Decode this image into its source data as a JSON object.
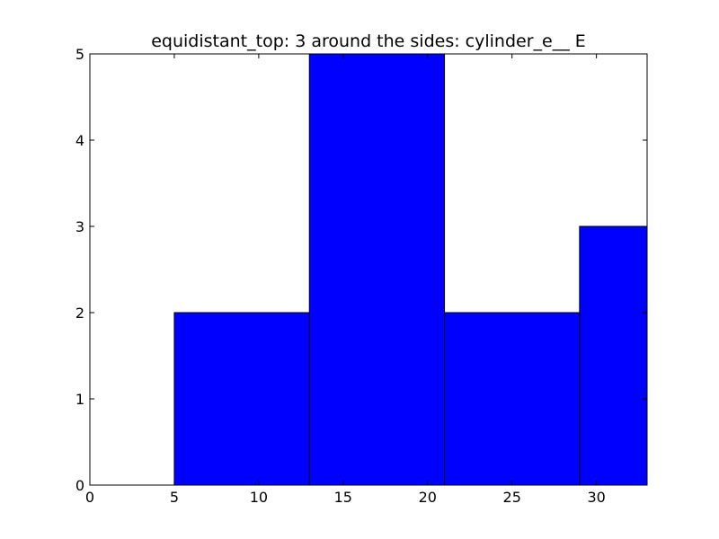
{
  "chart_data": {
    "type": "bar",
    "title": "equidistant_top: 3 around the sides: cylinder_e__ E",
    "xlabel": "",
    "ylabel": "",
    "xlim": [
      0,
      33
    ],
    "ylim": [
      0,
      5
    ],
    "bins": [
      {
        "x0": 0,
        "x1": 5,
        "value": 0
      },
      {
        "x0": 5,
        "x1": 13,
        "value": 2
      },
      {
        "x0": 13,
        "x1": 21,
        "value": 5
      },
      {
        "x0": 21,
        "x1": 29,
        "value": 2
      },
      {
        "x0": 29,
        "x1": 33,
        "value": 3
      }
    ],
    "xticks": [
      0,
      5,
      10,
      15,
      20,
      25,
      30
    ],
    "yticks": [
      0,
      1,
      2,
      3,
      4,
      5
    ],
    "bar_color": "#0000ff",
    "edge_color": "#000000",
    "grid": false,
    "legend": "none"
  }
}
